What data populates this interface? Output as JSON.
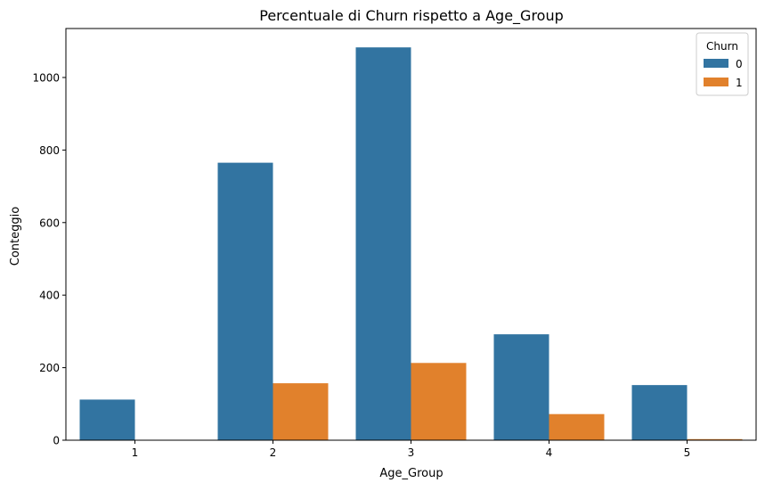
{
  "chart_data": {
    "type": "bar",
    "title": "Percentuale di Churn rispetto a Age_Group",
    "xlabel": "Age_Group",
    "ylabel": "Conteggio",
    "categories": [
      "1",
      "2",
      "3",
      "4",
      "5"
    ],
    "ylim": [
      0,
      1135
    ],
    "yticks": [
      0,
      200,
      400,
      600,
      800,
      1000
    ],
    "grid": false,
    "legend": {
      "title": "Churn",
      "placement": "top-right"
    },
    "series": [
      {
        "name": "0",
        "color": "#3274a1",
        "values": [
          112,
          765,
          1083,
          292,
          152
        ]
      },
      {
        "name": "1",
        "color": "#e1812c",
        "values": [
          0,
          157,
          213,
          72,
          3
        ]
      }
    ]
  }
}
